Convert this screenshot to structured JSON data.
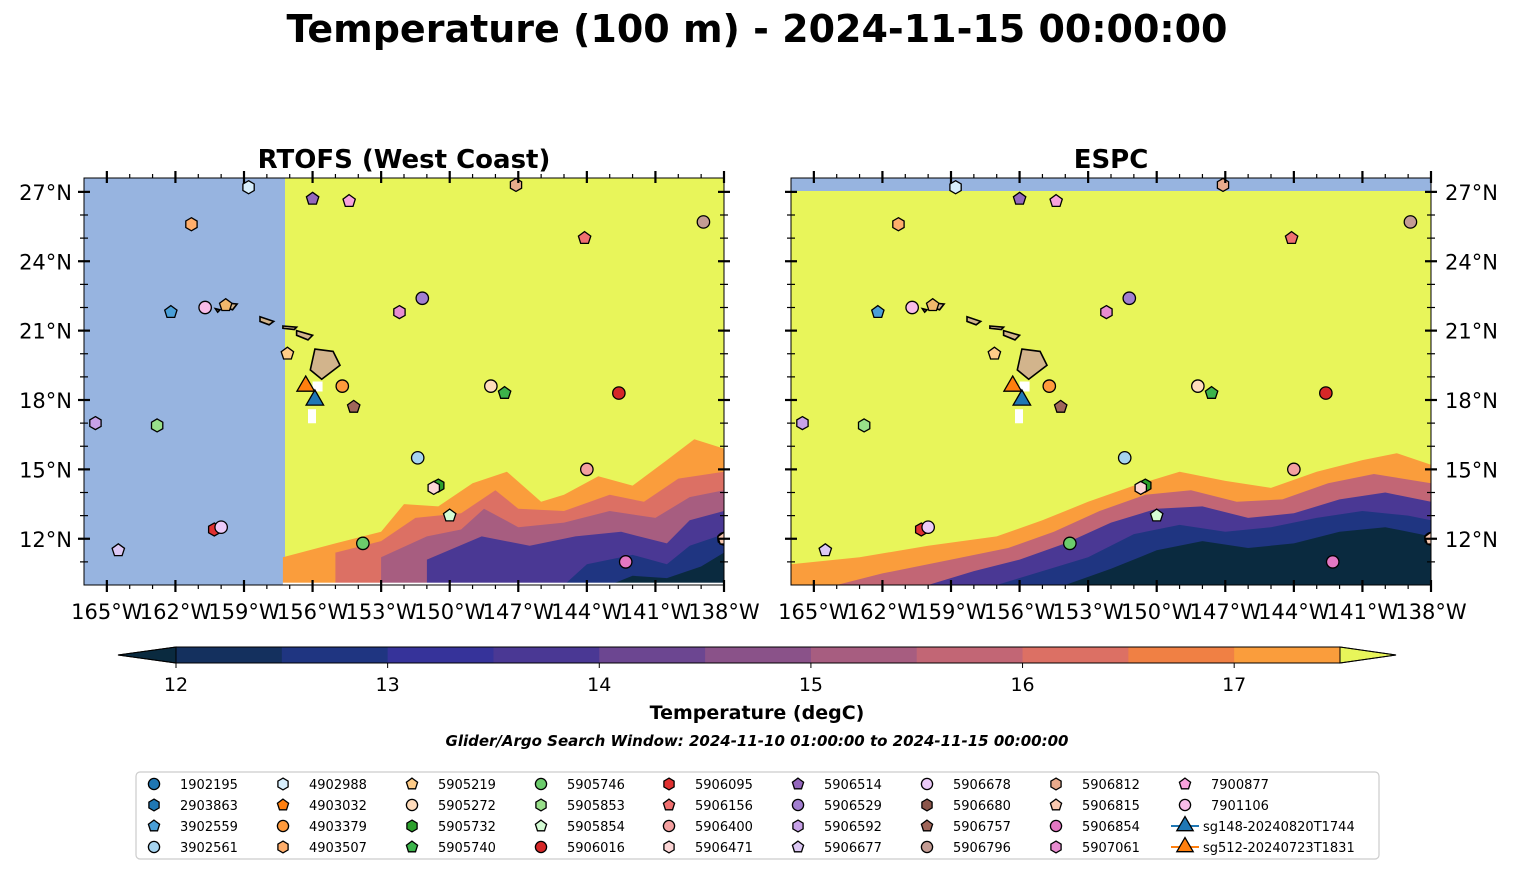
{
  "title": "Temperature (100 m) - 2024-11-15 00:00:00",
  "search_window": "Glider/Argo Search Window: 2024-11-10 01:00:00 to 2024-11-15 00:00:00",
  "colorbar": {
    "label": "Temperature (degC)",
    "ticks": [
      "12",
      "13",
      "14",
      "15",
      "16",
      "17"
    ],
    "levels_min": 11.75,
    "levels_max": 17.5,
    "colors": [
      "#0a2a3f",
      "#14305e",
      "#1f3581",
      "#36339a",
      "#4a3894",
      "#6c4691",
      "#8a5289",
      "#a75d80",
      "#c26675",
      "#dc7064",
      "#f08044",
      "#fa9d3c",
      "#f9c445",
      "#e8f55a"
    ]
  },
  "land_color": "#d2b48c",
  "nodata_color": "#97b4e0",
  "panels": [
    {
      "title": "RTOFS (West Coast)",
      "lat_ticks": [
        "27°N",
        "24°N",
        "21°N",
        "18°N",
        "15°N",
        "12°N"
      ],
      "lon_ticks": [
        "165°W",
        "162°W",
        "159°W",
        "156°W",
        "153°W",
        "150°W",
        "147°W",
        "144°W",
        "141°W",
        "138°W"
      ]
    },
    {
      "title": "ESPC",
      "lat_ticks": [
        "27°N",
        "24°N",
        "21°N",
        "18°N",
        "15°N",
        "12°N"
      ],
      "lon_ticks": [
        "165°W",
        "162°W",
        "159°W",
        "156°W",
        "153°W",
        "150°W",
        "147°W",
        "144°W",
        "141°W",
        "138°W"
      ]
    }
  ],
  "chart_data": {
    "type": "map",
    "x_range": [
      -166,
      -138
    ],
    "y_range": [
      10,
      27.6
    ],
    "floats": [
      {
        "id": "1902195",
        "marker": "circle",
        "color": "#1f77b4",
        "lon": -138,
        "lat": 12
      },
      {
        "id": "2903863",
        "marker": "hexagon",
        "color": "#1f77b4",
        "lon": -138,
        "lat": 12
      },
      {
        "id": "3902559",
        "marker": "pentagon",
        "color": "#4a9fd8",
        "lon": -162.2,
        "lat": 21.8
      },
      {
        "id": "3902561",
        "marker": "circle",
        "color": "#a6d4f0",
        "lon": -151.4,
        "lat": 15.5
      },
      {
        "id": "4902988",
        "marker": "hexagon",
        "color": "#d7eefc",
        "lon": -158.8,
        "lat": 27.2
      },
      {
        "id": "4903032",
        "marker": "pentagon",
        "color": "#ff7f0e",
        "lon": -138,
        "lat": 12
      },
      {
        "id": "4903379",
        "marker": "circle",
        "color": "#ff9a3c",
        "lon": -154.7,
        "lat": 18.6
      },
      {
        "id": "4903507",
        "marker": "hexagon",
        "color": "#ffae6b",
        "lon": -161.3,
        "lat": 25.6
      },
      {
        "id": "5905219",
        "marker": "pentagon",
        "color": "#ffcc88",
        "lon": -157.1,
        "lat": 20.0
      },
      {
        "id": "5905272",
        "marker": "circle",
        "color": "#ffdcbc",
        "lon": -148.2,
        "lat": 18.6
      },
      {
        "id": "5905732",
        "marker": "hexagon",
        "color": "#2ca02c",
        "lon": -150.5,
        "lat": 14.3
      },
      {
        "id": "5905740",
        "marker": "pentagon",
        "color": "#3cb44b",
        "lon": -147.6,
        "lat": 18.3
      },
      {
        "id": "5905746",
        "marker": "circle",
        "color": "#6ccc6c",
        "lon": -153.8,
        "lat": 11.8
      },
      {
        "id": "5905853",
        "marker": "hexagon",
        "color": "#98df8a",
        "lon": -162.8,
        "lat": 16.9
      },
      {
        "id": "5905854",
        "marker": "pentagon",
        "color": "#d4fcd4",
        "lon": -150.0,
        "lat": 13.0
      },
      {
        "id": "5906016",
        "marker": "circle",
        "color": "#d62728",
        "lon": -142.6,
        "lat": 18.3
      },
      {
        "id": "5906095",
        "marker": "hexagon",
        "color": "#e03030",
        "lon": -160.3,
        "lat": 12.4
      },
      {
        "id": "5906156",
        "marker": "pentagon",
        "color": "#f07070",
        "lon": -144.1,
        "lat": 25.0
      },
      {
        "id": "5906400",
        "marker": "circle",
        "color": "#f4a0a0",
        "lon": -144.0,
        "lat": 15.0
      },
      {
        "id": "5906471",
        "marker": "hexagon",
        "color": "#fcd6d6",
        "lon": -150.7,
        "lat": 14.2
      },
      {
        "id": "5906514",
        "marker": "pentagon",
        "color": "#9467bd",
        "lon": -156.0,
        "lat": 26.7
      },
      {
        "id": "5906529",
        "marker": "circle",
        "color": "#a27ed0",
        "lon": -151.2,
        "lat": 22.4
      },
      {
        "id": "5906592",
        "marker": "hexagon",
        "color": "#c8a2e8",
        "lon": -165.5,
        "lat": 17.0
      },
      {
        "id": "5906677",
        "marker": "pentagon",
        "color": "#dcc8f4",
        "lon": -164.5,
        "lat": 11.5
      },
      {
        "id": "5906678",
        "marker": "circle",
        "color": "#eccaf8",
        "lon": -160.0,
        "lat": 12.5
      },
      {
        "id": "5906680",
        "marker": "hexagon",
        "color": "#8c564b",
        "lon": -138,
        "lat": 12
      },
      {
        "id": "5906757",
        "marker": "pentagon",
        "color": "#a0665a",
        "lon": -154.2,
        "lat": 17.7
      },
      {
        "id": "5906796",
        "marker": "circle",
        "color": "#c49c94",
        "lon": -138.9,
        "lat": 25.7
      },
      {
        "id": "5906812",
        "marker": "hexagon",
        "color": "#e8aa8c",
        "lon": -147.1,
        "lat": 27.3
      },
      {
        "id": "5906815",
        "marker": "pentagon",
        "color": "#f8c8b0",
        "lon": -138,
        "lat": 12
      },
      {
        "id": "5906854",
        "marker": "circle",
        "color": "#e377c2",
        "lon": -142.3,
        "lat": 11.0
      },
      {
        "id": "5907061",
        "marker": "hexagon",
        "color": "#e88cd0",
        "lon": -152.2,
        "lat": 21.8
      },
      {
        "id": "7900877",
        "marker": "pentagon",
        "color": "#f8a2dc",
        "lon": -154.4,
        "lat": 26.6
      },
      {
        "id": "7901106",
        "marker": "circle",
        "color": "#f8bce8",
        "lon": -160.7,
        "lat": 22.0
      },
      {
        "id": "sg148-20240820T1744",
        "marker": "triangle",
        "color": "#1f77b4",
        "lon": -155.9,
        "lat": 18.0
      },
      {
        "id": "sg512-20240723T1831",
        "marker": "triangle",
        "color": "#ff7f0e",
        "lon": -156.3,
        "lat": 18.6
      }
    ],
    "hawaii_floats": [
      {
        "id": "5905219",
        "marker": "pentagon",
        "color": "#f0b86c",
        "lon": -159.8,
        "lat": 22.1
      }
    ]
  }
}
